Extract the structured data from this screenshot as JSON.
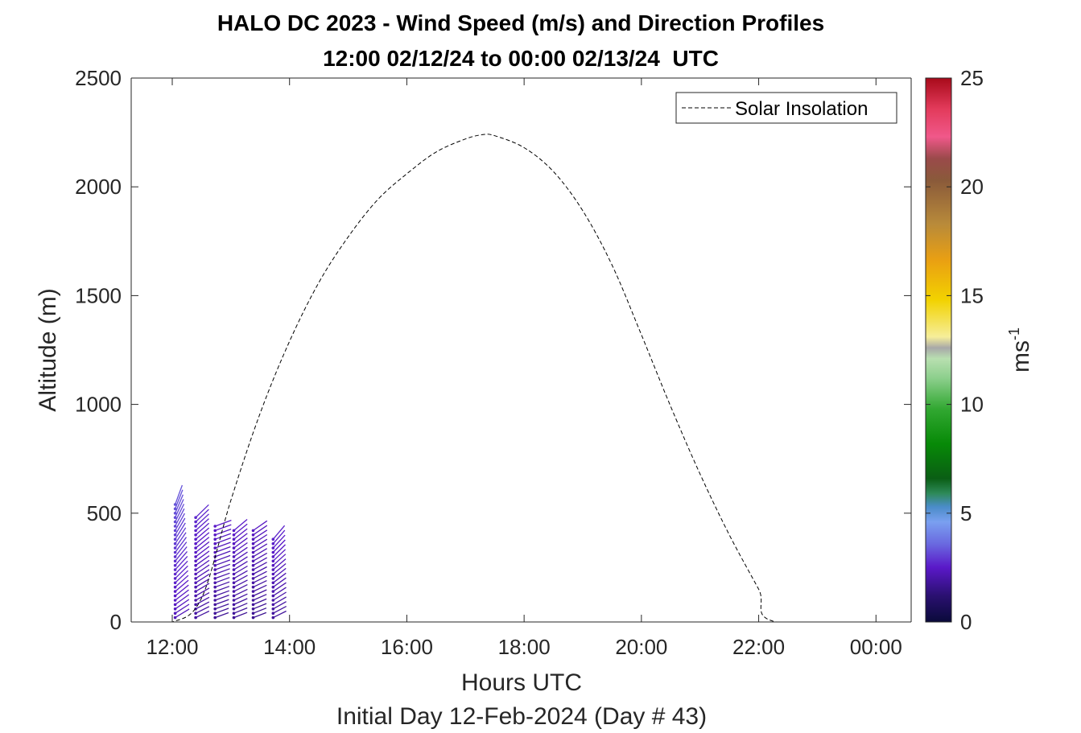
{
  "chart_data": {
    "type": "quiver-profile",
    "title": "HALO DC 2023 - Wind Speed (m/s) and Direction Profiles",
    "subtitle": "12:00 02/12/24 to 00:00 02/13/24  UTC",
    "xlabel": "Hours UTC",
    "xlabel2": "Initial Day 12-Feb-2024 (Day # 43)",
    "ylabel": "Altitude (m)",
    "xlim": [
      11.3,
      24.6
    ],
    "ylim": [
      0,
      2500
    ],
    "x_ticks": [
      {
        "value": 12,
        "label": "12:00"
      },
      {
        "value": 14,
        "label": "14:00"
      },
      {
        "value": 16,
        "label": "16:00"
      },
      {
        "value": 18,
        "label": "18:00"
      },
      {
        "value": 20,
        "label": "20:00"
      },
      {
        "value": 22,
        "label": "22:00"
      },
      {
        "value": 24,
        "label": "00:00"
      }
    ],
    "y_ticks": [
      {
        "value": 0,
        "label": "0"
      },
      {
        "value": 500,
        "label": "500"
      },
      {
        "value": 1000,
        "label": "1000"
      },
      {
        "value": 1500,
        "label": "1500"
      },
      {
        "value": 2000,
        "label": "2000"
      },
      {
        "value": 2500,
        "label": "2500"
      }
    ],
    "legend": {
      "label": "Solar Insolation",
      "placement": "top-right"
    },
    "colorbar": {
      "label": "ms-1",
      "label_base": "ms",
      "label_exp": "-1",
      "range": [
        0,
        25
      ],
      "ticks": [
        {
          "value": 0,
          "label": "0"
        },
        {
          "value": 5,
          "label": "5"
        },
        {
          "value": 10,
          "label": "10"
        },
        {
          "value": 15,
          "label": "15"
        },
        {
          "value": 20,
          "label": "20"
        },
        {
          "value": 25,
          "label": "25"
        }
      ],
      "stops": [
        {
          "value": 0,
          "color": "#0a0a3a"
        },
        {
          "value": 1.2,
          "color": "#2a1070"
        },
        {
          "value": 2.5,
          "color": "#5a18c8"
        },
        {
          "value": 3.6,
          "color": "#6a6ae0"
        },
        {
          "value": 4.6,
          "color": "#7aa0f0"
        },
        {
          "value": 5.3,
          "color": "#4a8cc8"
        },
        {
          "value": 5.9,
          "color": "#2e8a5a"
        },
        {
          "value": 6.6,
          "color": "#0a5e14"
        },
        {
          "value": 8.2,
          "color": "#078a07"
        },
        {
          "value": 9.8,
          "color": "#32a832"
        },
        {
          "value": 11.2,
          "color": "#8ccf8c"
        },
        {
          "value": 12.1,
          "color": "#b8dfb0"
        },
        {
          "value": 12.6,
          "color": "#a8a8a8"
        },
        {
          "value": 13.1,
          "color": "#f6ee9a"
        },
        {
          "value": 14.8,
          "color": "#f2d200"
        },
        {
          "value": 16.6,
          "color": "#eaa012"
        },
        {
          "value": 18.3,
          "color": "#b88a3a"
        },
        {
          "value": 20.3,
          "color": "#8a5a3a"
        },
        {
          "value": 21.3,
          "color": "#9a4a4a"
        },
        {
          "value": 22.3,
          "color": "#f0588a"
        },
        {
          "value": 23.6,
          "color": "#e23a5a"
        },
        {
          "value": 25,
          "color": "#a80a1a"
        }
      ]
    },
    "solar_insolation": {
      "style": "dashed",
      "color": "#000000",
      "points": [
        [
          11.3,
          0
        ],
        [
          12.0,
          0
        ],
        [
          12.5,
          110
        ],
        [
          13.0,
          560
        ],
        [
          13.5,
          960
        ],
        [
          14.0,
          1290
        ],
        [
          14.5,
          1560
        ],
        [
          15.0,
          1770
        ],
        [
          15.5,
          1940
        ],
        [
          16.0,
          2060
        ],
        [
          16.5,
          2160
        ],
        [
          17.0,
          2220
        ],
        [
          17.3,
          2240
        ],
        [
          17.5,
          2235
        ],
        [
          18.0,
          2180
        ],
        [
          18.5,
          2070
        ],
        [
          19.0,
          1890
        ],
        [
          19.5,
          1640
        ],
        [
          20.0,
          1320
        ],
        [
          20.5,
          990
        ],
        [
          21.0,
          680
        ],
        [
          21.5,
          400
        ],
        [
          22.0,
          150
        ],
        [
          22.3,
          0
        ],
        [
          24.6,
          0
        ]
      ]
    },
    "wind_profiles": [
      {
        "time": 12.05,
        "top": 540,
        "dir_low": 240,
        "dir_high": 200,
        "speed": 3.0
      },
      {
        "time": 12.4,
        "top": 490,
        "dir_low": 245,
        "dir_high": 225,
        "speed": 2.5
      },
      {
        "time": 12.73,
        "top": 450,
        "dir_low": 250,
        "dir_high": 250,
        "speed": 2.3
      },
      {
        "time": 13.05,
        "top": 420,
        "dir_low": 250,
        "dir_high": 230,
        "speed": 2.3
      },
      {
        "time": 13.38,
        "top": 420,
        "dir_low": 250,
        "dir_high": 235,
        "speed": 2.2
      },
      {
        "time": 13.72,
        "top": 380,
        "dir_low": 245,
        "dir_high": 220,
        "speed": 2.4
      }
    ]
  }
}
